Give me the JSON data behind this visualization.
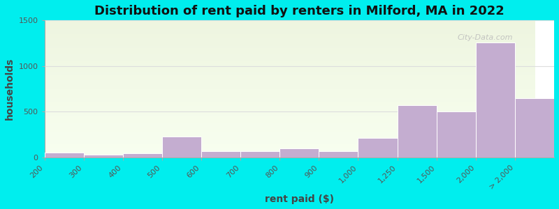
{
  "title": "Distribution of rent paid by renters in Milford, MA in 2022",
  "xlabel": "rent paid ($)",
  "ylabel": "households",
  "bar_labels": [
    "200",
    "300",
    "400",
    "500",
    "600",
    "700",
    "800",
    "900",
    "1,000",
    "1,250",
    "1,500",
    "2,000",
    "> 2,000"
  ],
  "values": [
    55,
    30,
    45,
    230,
    65,
    65,
    100,
    65,
    210,
    575,
    500,
    1255,
    650
  ],
  "bar_color": "#c4add0",
  "bar_edgecolor": "#ffffff",
  "background_color": "#00eeee",
  "plot_bg_color_top": "#eef5e0",
  "plot_bg_color_bottom": "#f8fff0",
  "title_fontsize": 13,
  "axis_label_fontsize": 10,
  "tick_fontsize": 8,
  "ylim": [
    0,
    1500
  ],
  "yticks": [
    0,
    500,
    1000,
    1500
  ],
  "watermark_text": "City-Data.com",
  "grid_color": "#dddddd"
}
